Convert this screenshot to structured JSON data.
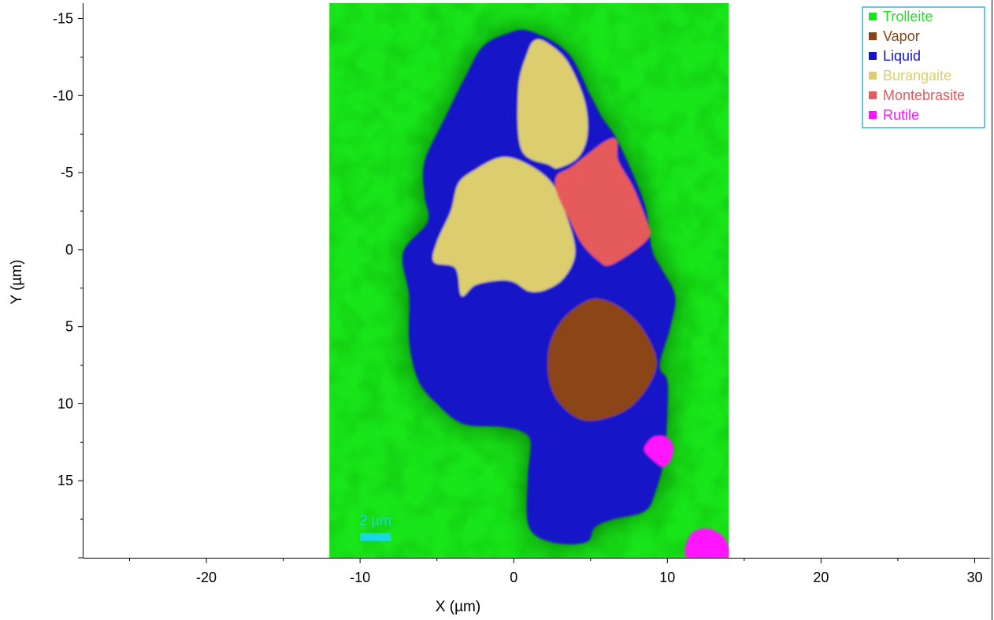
{
  "chart_data": {
    "type": "heatmap",
    "xlabel": "X (µm)",
    "ylabel": "Y (µm)",
    "xlim": [
      -28,
      31
    ],
    "ylim": [
      -16,
      20
    ],
    "y_inverted": true,
    "x_ticks": [
      -20,
      -10,
      0,
      10,
      20,
      30
    ],
    "y_ticks": [
      -15,
      -10,
      -5,
      0,
      5,
      10,
      15
    ],
    "image_extent_x": [
      -12,
      14
    ],
    "image_extent_y": [
      -16,
      20
    ],
    "background_phase": "Trolleite",
    "legend": {
      "placement": "top-right",
      "entries": [
        {
          "name": "Trolleite",
          "color": "#19e619"
        },
        {
          "name": "Vapor",
          "color": "#8b4513"
        },
        {
          "name": "Liquid",
          "color": "#1515c8"
        },
        {
          "name": "Burangaite",
          "color": "#dccd6e"
        },
        {
          "name": "Montebrasite",
          "color": "#e55a5a"
        },
        {
          "name": "Rutile",
          "color": "#ff14ff"
        }
      ]
    },
    "regions": [
      {
        "phase": "Liquid",
        "points": [
          [
            -0.5,
            -14
          ],
          [
            1,
            -14.2
          ],
          [
            3.5,
            -12.8
          ],
          [
            5,
            -10
          ],
          [
            5.8,
            -8.5
          ],
          [
            6.8,
            -7
          ],
          [
            8.5,
            -3
          ],
          [
            9,
            0
          ],
          [
            9.6,
            1.2
          ],
          [
            10.5,
            3
          ],
          [
            10.2,
            5
          ],
          [
            9.5,
            7.5
          ],
          [
            10,
            8.5
          ],
          [
            10,
            10.5
          ],
          [
            9.8,
            13.5
          ],
          [
            9.2,
            15.8
          ],
          [
            8.5,
            17
          ],
          [
            6.5,
            17.5
          ],
          [
            5.3,
            18
          ],
          [
            4.7,
            19
          ],
          [
            2.5,
            19
          ],
          [
            1,
            18
          ],
          [
            0.9,
            15
          ],
          [
            1.1,
            12.5
          ],
          [
            0.5,
            11.8
          ],
          [
            -0.8,
            11.5
          ],
          [
            -3.3,
            11.3
          ],
          [
            -5,
            10
          ],
          [
            -6.2,
            8.5
          ],
          [
            -6.8,
            6
          ],
          [
            -6.8,
            3
          ],
          [
            -7.2,
            0.2
          ],
          [
            -5.6,
            -1.8
          ],
          [
            -5.8,
            -3.5
          ],
          [
            -5.8,
            -5.7
          ],
          [
            -4.5,
            -8.5
          ],
          [
            -3,
            -11.5
          ],
          [
            -2,
            -13.2
          ]
        ]
      },
      {
        "phase": "Burangaite",
        "points": [
          [
            1.4,
            -13.6
          ],
          [
            2.2,
            -13.4
          ],
          [
            3.5,
            -12.2
          ],
          [
            4.6,
            -9.7
          ],
          [
            4.8,
            -7.5
          ],
          [
            4.2,
            -6
          ],
          [
            2.9,
            -5.3
          ],
          [
            2.3,
            -5.5
          ],
          [
            0.5,
            -6.5
          ],
          [
            0.3,
            -10.5
          ],
          [
            0.9,
            -12.8
          ]
        ]
      },
      {
        "phase": "Burangaite",
        "points": [
          [
            -0.8,
            -6
          ],
          [
            0.8,
            -5.6
          ],
          [
            2.5,
            -4.3
          ],
          [
            3.5,
            -2
          ],
          [
            4,
            0.2
          ],
          [
            3.3,
            1.8
          ],
          [
            2.1,
            2.6
          ],
          [
            1,
            2.7
          ],
          [
            0,
            2.1
          ],
          [
            -1,
            2
          ],
          [
            -2.5,
            2.3
          ],
          [
            -3.4,
            3
          ],
          [
            -3.8,
            1.2
          ],
          [
            -5.2,
            0.8
          ],
          [
            -5,
            -0.5
          ],
          [
            -4.1,
            -2.5
          ],
          [
            -3.6,
            -4.3
          ],
          [
            -2.5,
            -5.2
          ]
        ]
      },
      {
        "phase": "Montebrasite",
        "points": [
          [
            5.9,
            -7
          ],
          [
            6.7,
            -7.1
          ],
          [
            6.8,
            -5.8
          ],
          [
            7.8,
            -4
          ],
          [
            8.8,
            -1.5
          ],
          [
            8.9,
            -1
          ],
          [
            8.2,
            -0.2
          ],
          [
            6.3,
            1
          ],
          [
            5.5,
            0.7
          ],
          [
            4.5,
            -0.3
          ],
          [
            3.7,
            -1.8
          ],
          [
            2.8,
            -3.7
          ],
          [
            2.8,
            -4.8
          ],
          [
            3.8,
            -5.4
          ]
        ]
      },
      {
        "phase": "Vapor",
        "points": [
          [
            4.8,
            3.3
          ],
          [
            6,
            3.3
          ],
          [
            7.3,
            4
          ],
          [
            8.5,
            5.3
          ],
          [
            9.3,
            7.2
          ],
          [
            8.8,
            8.8
          ],
          [
            7.5,
            10.3
          ],
          [
            5.8,
            11
          ],
          [
            4.3,
            11
          ],
          [
            3,
            10
          ],
          [
            2.3,
            8.5
          ],
          [
            2.3,
            6.3
          ],
          [
            3.2,
            4.5
          ]
        ]
      },
      {
        "phase": "Rutile",
        "points": [
          [
            9.3,
            12.1
          ],
          [
            10,
            12.2
          ],
          [
            10.4,
            12.8
          ],
          [
            10.2,
            13.7
          ],
          [
            9.7,
            14.1
          ],
          [
            9,
            13.6
          ],
          [
            8.5,
            13
          ],
          [
            8.8,
            12.4
          ]
        ]
      },
      {
        "phase": "Rutile",
        "points": [
          [
            12.5,
            18.1
          ],
          [
            13.5,
            18.5
          ],
          [
            14,
            19.3
          ],
          [
            14,
            20
          ],
          [
            11.3,
            20
          ],
          [
            11.5,
            18.5
          ]
        ]
      }
    ],
    "scalebar": {
      "label": "2 µm",
      "length": 2,
      "x": -10,
      "y": 18.4,
      "color": "#19d7e6"
    }
  }
}
